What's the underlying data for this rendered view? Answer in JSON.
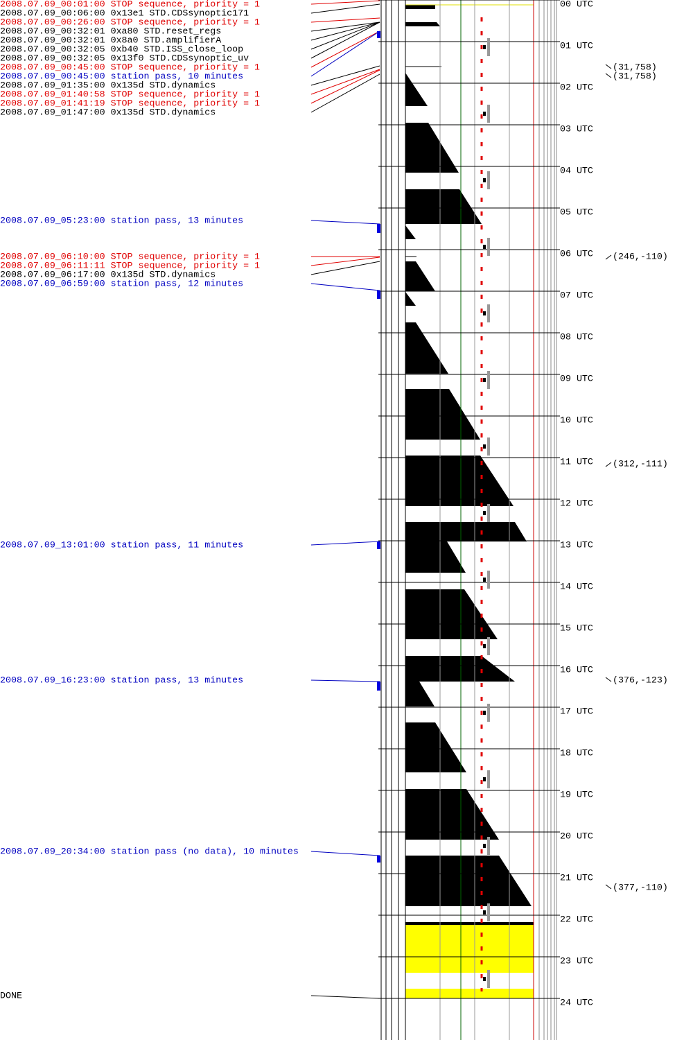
{
  "events": [
    {
      "text": "2008.07.09_00:01:00 STOP sequence, priority = 1",
      "color": "#e00000"
    },
    {
      "text": "2008.07.09_00:06:00 0x13e1 STD.CDSsynoptic171",
      "color": "#000000"
    },
    {
      "text": "2008.07.09_00:26:00 STOP sequence, priority = 1",
      "color": "#e00000"
    },
    {
      "text": "2008.07.09_00:32:01  0xa80 STD.reset_regs",
      "color": "#000000"
    },
    {
      "text": "2008.07.09_00:32:01  0x8a0 STD.amplifierA",
      "color": "#000000"
    },
    {
      "text": "2008.07.09_00:32:05  0xb40 STD.ISS_close_loop",
      "color": "#000000"
    },
    {
      "text": "2008.07.09_00:32:05 0x13f0 STD.CDSsynoptic_uv",
      "color": "#000000"
    },
    {
      "text": "2008.07.09_00:45:00 STOP sequence, priority = 1",
      "color": "#e00000"
    },
    {
      "text": "2008.07.09_00:45:00 station pass, 10 minutes",
      "color": "#0000c0"
    },
    {
      "text": "2008.07.09_01:35:00 0x135d STD.dynamics",
      "color": "#000000"
    },
    {
      "text": "2008.07.09_01:40:58 STOP sequence, priority = 1",
      "color": "#e00000"
    },
    {
      "text": "2008.07.09_01:41:19 STOP sequence, priority = 1",
      "color": "#e00000"
    },
    {
      "text": "2008.07.09_01:47:00 0x135d STD.dynamics",
      "color": "#000000"
    },
    {
      "text": "2008.07.09_05:23:00 station pass, 13 minutes",
      "color": "#0000c0"
    },
    {
      "text": "2008.07.09_06:10:00 STOP sequence, priority = 1",
      "color": "#e00000"
    },
    {
      "text": "2008.07.09_06:11:11 STOP sequence, priority = 1",
      "color": "#e00000"
    },
    {
      "text": "2008.07.09_06:17:00 0x135d STD.dynamics",
      "color": "#000000"
    },
    {
      "text": "2008.07.09_06:59:00 station pass, 12 minutes",
      "color": "#0000c0"
    },
    {
      "text": "2008.07.09_13:01:00 station pass, 11 minutes",
      "color": "#0000c0"
    },
    {
      "text": "2008.07.09_16:23:00 station pass, 13 minutes",
      "color": "#0000c0"
    },
    {
      "text": "2008.07.09_20:34:00 station pass (no data), 10 minutes",
      "color": "#0000c0"
    }
  ],
  "done": "DONE",
  "hour_labels": [
    "00 UTC",
    "01 UTC",
    "02 UTC",
    "03 UTC",
    "04 UTC",
    "05 UTC",
    "06 UTC",
    "07 UTC",
    "08 UTC",
    "09 UTC",
    "10 UTC",
    "11 UTC",
    "12 UTC",
    "13 UTC",
    "14 UTC",
    "15 UTC",
    "16 UTC",
    "17 UTC",
    "18 UTC",
    "19 UTC",
    "20 UTC",
    "21 UTC",
    "22 UTC",
    "23 UTC",
    "24 UTC"
  ],
  "annotations": [
    "(31,758)",
    "(31,758)",
    "(246,-110)",
    "(312,-111)",
    "(376,-123)",
    "(377,-110)"
  ]
}
